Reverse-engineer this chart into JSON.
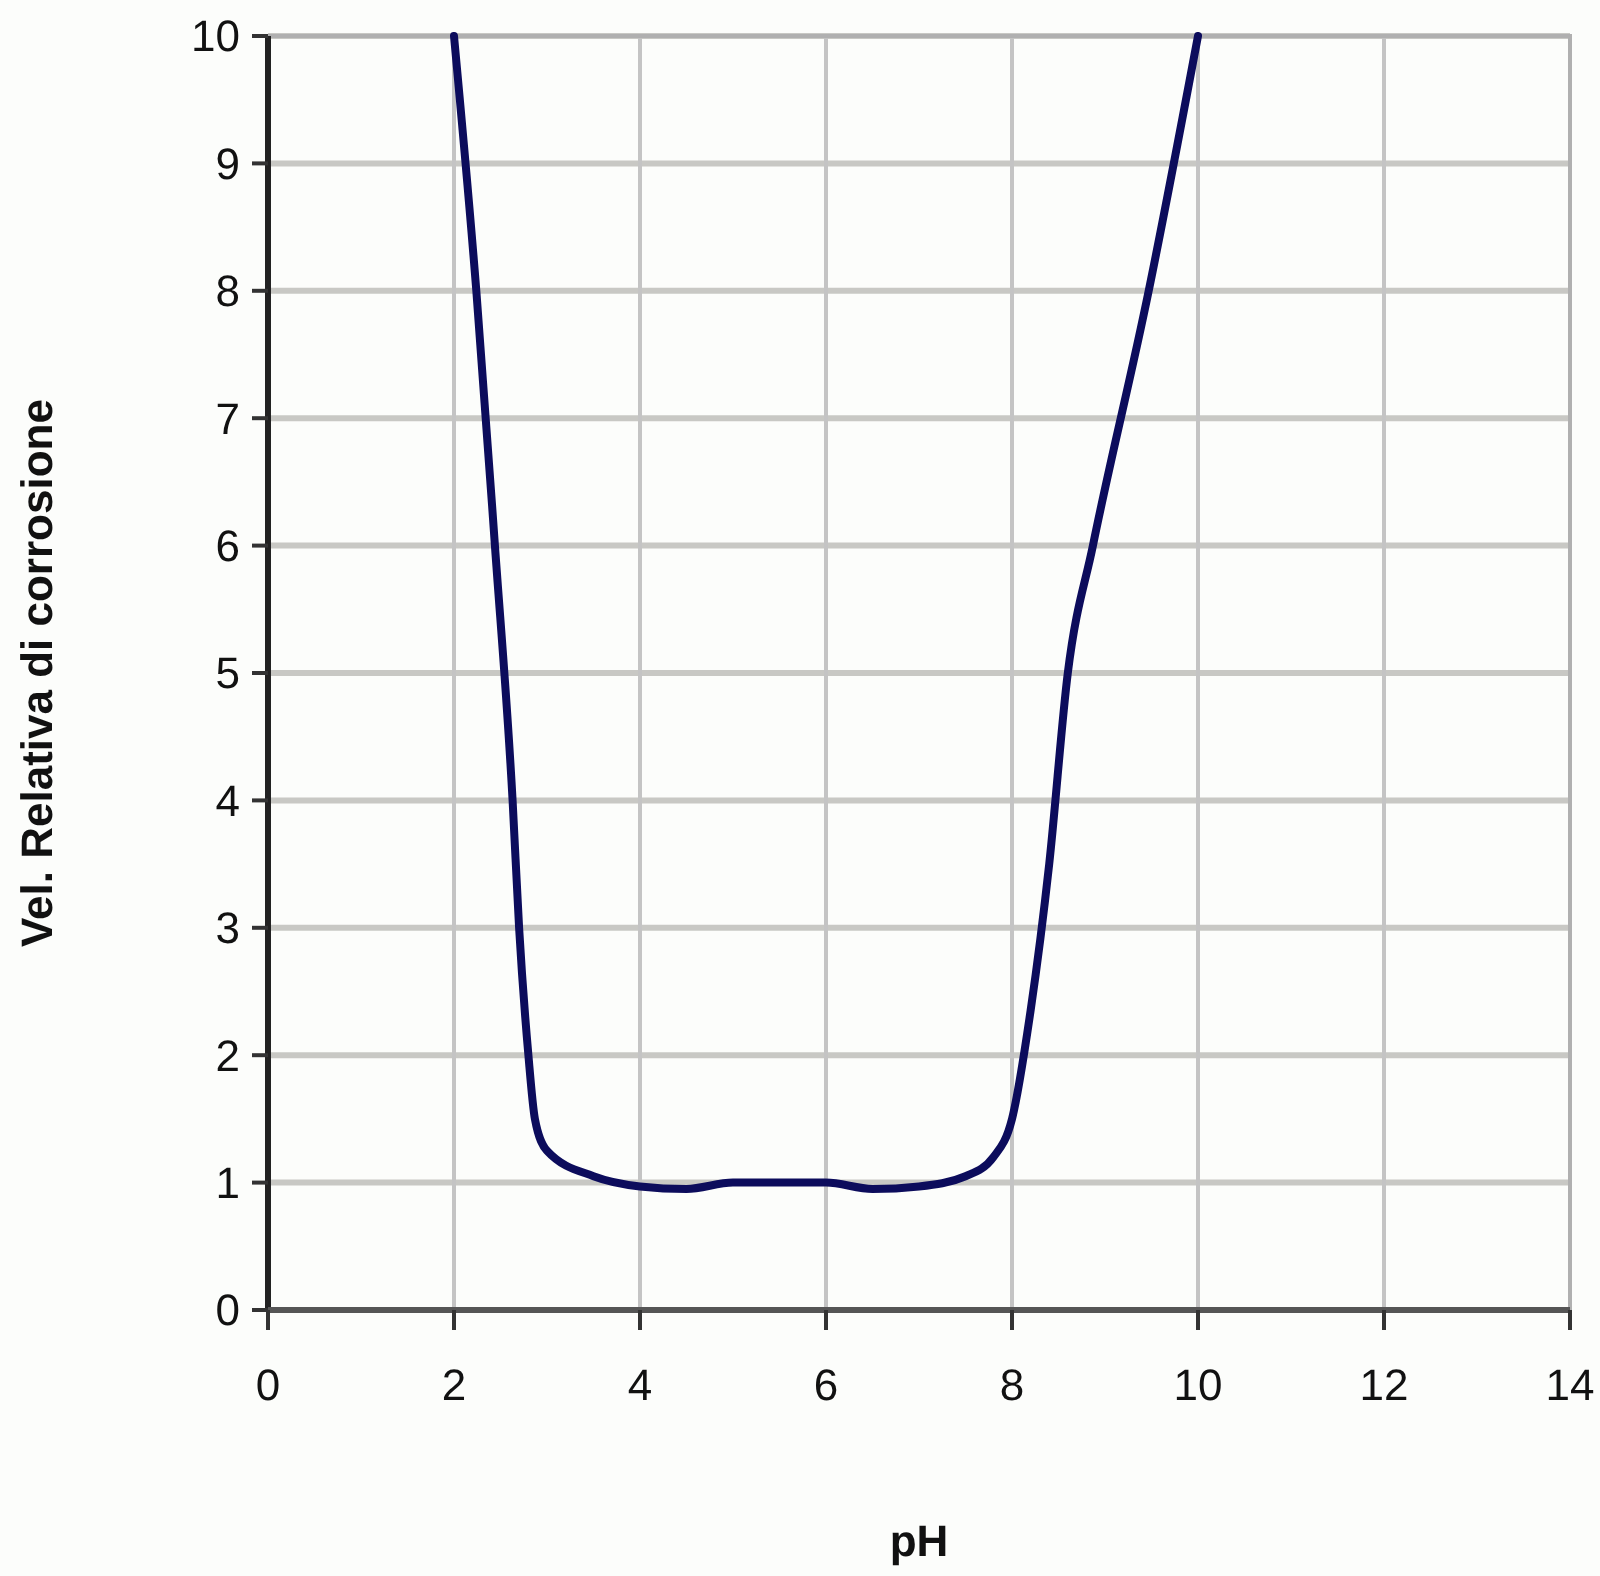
{
  "chart_data": {
    "type": "line",
    "xlabel": "pH",
    "ylabel": "Vel. Relativa di corrosione",
    "series": [
      {
        "color": "#0c0c5c",
        "x": [
          2,
          2.24,
          2.44,
          2.63,
          2.7,
          2.8,
          2.87,
          3,
          3.5,
          4,
          4.5,
          5,
          6,
          6.5,
          7,
          7.5,
          7.8,
          8,
          8.2,
          8.4,
          8.6,
          8.87,
          9.47,
          10
        ],
        "values": [
          10,
          8,
          6,
          4,
          3,
          2,
          1.5,
          1.25,
          1.05,
          0.97,
          0.95,
          1,
          1,
          0.95,
          0.97,
          1.05,
          1.2,
          1.5,
          2.35,
          3.5,
          5,
          6,
          8,
          10
        ]
      }
    ],
    "xlim": [
      0,
      14
    ],
    "xticks": [
      0,
      2,
      4,
      6,
      8,
      10,
      12,
      14
    ],
    "ylim": [
      0,
      10
    ],
    "yticks": [
      0,
      1,
      2,
      3,
      4,
      5,
      6,
      7,
      8,
      9,
      10
    ],
    "grid": true,
    "marker": "none",
    "line_style": "solid"
  }
}
